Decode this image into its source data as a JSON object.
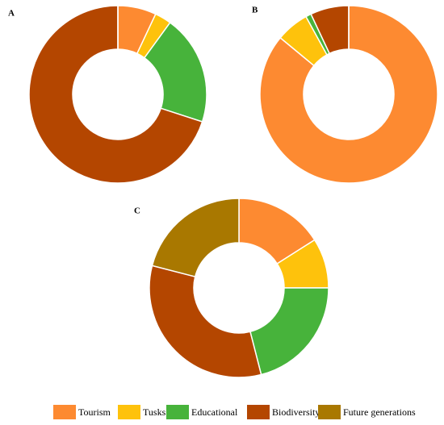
{
  "chart_data": [
    {
      "type": "pie",
      "title": "A",
      "categories": [
        "Tourism",
        "Tusks",
        "Educational",
        "Biodiversity",
        "Future generations"
      ],
      "values": [
        7,
        3,
        20,
        70,
        0
      ],
      "colors": [
        "#fd8a31",
        "#fec20c",
        "#47b33b",
        "#b44600",
        "#a97800"
      ]
    },
    {
      "type": "pie",
      "title": "B",
      "categories": [
        "Tourism",
        "Tusks",
        "Educational",
        "Biodiversity",
        "Future generations"
      ],
      "values": [
        86,
        6,
        1,
        7,
        0
      ],
      "colors": [
        "#fd8a31",
        "#fec20c",
        "#47b33b",
        "#b44600",
        "#a97800"
      ]
    },
    {
      "type": "pie",
      "title": "C",
      "categories": [
        "Tourism",
        "Tusks",
        "Educational",
        "Biodiversity",
        "Future generations"
      ],
      "values": [
        16,
        9,
        21,
        33,
        21
      ],
      "colors": [
        "#fd8a31",
        "#fec20c",
        "#47b33b",
        "#b44600",
        "#a97800"
      ]
    }
  ]
}
